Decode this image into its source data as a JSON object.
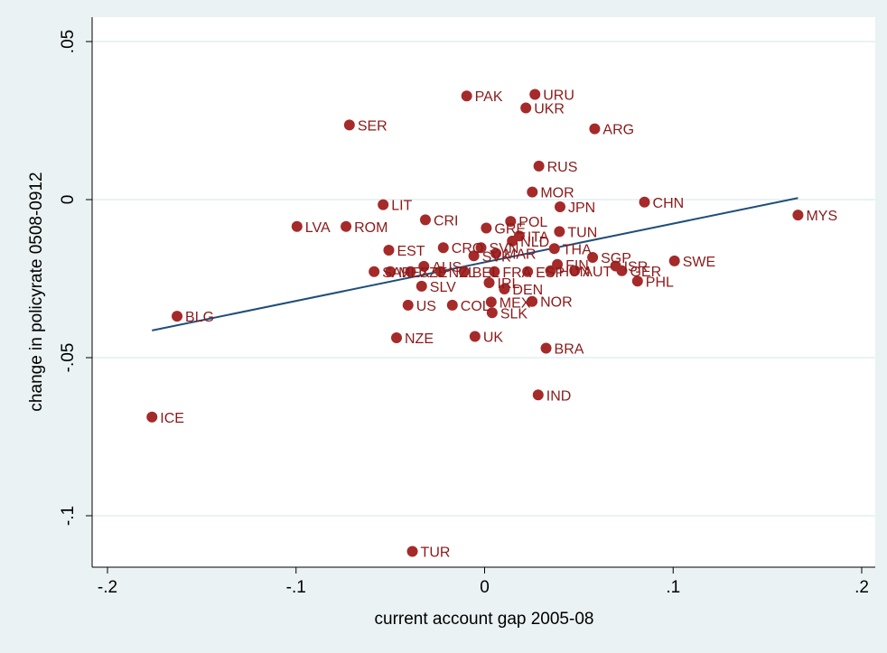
{
  "chart_data": {
    "type": "scatter",
    "title": "",
    "xlabel": "current account gap 2005-08",
    "ylabel": "change in policyrate 0508-0912",
    "xlim": [
      -0.2,
      0.2
    ],
    "ylim": [
      -0.115,
      0.05
    ],
    "xticks": [
      -0.2,
      -0.1,
      0,
      0.1,
      0.2
    ],
    "xtick_labels": [
      "-.2",
      "-.1",
      "0",
      ".1",
      ".2"
    ],
    "yticks": [
      -0.1,
      -0.05,
      0,
      0.05
    ],
    "ytick_labels": [
      "-.1",
      "-.05",
      "0",
      ".05"
    ],
    "grid": "horizontal",
    "colors": {
      "marker": "#a52a2a",
      "label": "#8b1a1a",
      "fit_line": "#1f4e79",
      "plot_bg": "#ffffff",
      "outer_bg": "#eaf2f3",
      "grid": "#e4eef0"
    },
    "points": [
      {
        "label": "PAK",
        "x": -0.0095,
        "y": 0.0328
      },
      {
        "label": "URU",
        "x": 0.0267,
        "y": 0.0333
      },
      {
        "label": "UKR",
        "x": 0.0219,
        "y": 0.029
      },
      {
        "label": "SER",
        "x": -0.0717,
        "y": 0.0236
      },
      {
        "label": "ARG",
        "x": 0.0584,
        "y": 0.0224
      },
      {
        "label": "RUS",
        "x": 0.0288,
        "y": 0.0106
      },
      {
        "label": "MOR",
        "x": 0.0253,
        "y": 0.0024
      },
      {
        "label": "JPN",
        "x": 0.04,
        "y": -0.0023
      },
      {
        "label": "CHN",
        "x": 0.0848,
        "y": -0.0008
      },
      {
        "label": "LIT",
        "x": -0.0538,
        "y": -0.0016
      },
      {
        "label": "MYS",
        "x": 0.1662,
        "y": -0.0049
      },
      {
        "label": "CRI",
        "x": -0.0314,
        "y": -0.0064
      },
      {
        "label": "LVA",
        "x": -0.0995,
        "y": -0.0085
      },
      {
        "label": "ROM",
        "x": -0.0735,
        "y": -0.0085
      },
      {
        "label": "POL",
        "x": 0.0138,
        "y": -0.0069
      },
      {
        "label": "GRE",
        "x": 0.0009,
        "y": -0.009
      },
      {
        "label": "ITA",
        "x": 0.0184,
        "y": -0.0115
      },
      {
        "label": "TUN",
        "x": 0.0397,
        "y": -0.0101
      },
      {
        "label": "NLD",
        "x": 0.0147,
        "y": -0.0131
      },
      {
        "label": "EST",
        "x": -0.0508,
        "y": -0.016
      },
      {
        "label": "CRO",
        "x": -0.0219,
        "y": -0.0152
      },
      {
        "label": "SVN",
        "x": -0.0019,
        "y": -0.0152
      },
      {
        "label": "THA",
        "x": 0.037,
        "y": -0.0155
      },
      {
        "label": "SGP",
        "x": 0.0573,
        "y": -0.0183
      },
      {
        "label": "MAR",
        "x": 0.006,
        "y": -0.017
      },
      {
        "label": "SWE",
        "x": 0.1007,
        "y": -0.0194
      },
      {
        "label": "ISR",
        "x": 0.0695,
        "y": -0.021
      },
      {
        "label": "GER",
        "x": 0.0728,
        "y": -0.0225
      },
      {
        "label": "FIN",
        "x": 0.0386,
        "y": -0.0205
      },
      {
        "label": "AUT",
        "x": 0.0478,
        "y": -0.0225
      },
      {
        "label": "HUN",
        "x": 0.035,
        "y": -0.0225
      },
      {
        "label": "PHL",
        "x": 0.0811,
        "y": -0.0258
      },
      {
        "label": "AUS",
        "x": -0.0322,
        "y": -0.0211
      },
      {
        "label": "SAF",
        "x": -0.0586,
        "y": -0.0228
      },
      {
        "label": "MEX",
        "x": -0.05,
        "y": -0.0228
      },
      {
        "label": "CZE",
        "x": -0.0393,
        "y": -0.0228
      },
      {
        "label": "NZL",
        "x": -0.0234,
        "y": -0.0228
      },
      {
        "label": "BEL",
        "x": -0.0109,
        "y": -0.0228
      },
      {
        "label": "FRA",
        "x": 0.0052,
        "y": -0.0228
      },
      {
        "label": "ESP",
        "x": 0.0228,
        "y": -0.0228
      },
      {
        "label": "SVK",
        "x": -0.0057,
        "y": -0.0178
      },
      {
        "label": "IRL",
        "x": 0.0024,
        "y": -0.0263
      },
      {
        "label": "NOR",
        "x": 0.0252,
        "y": -0.0322
      },
      {
        "label": "DEN",
        "x": 0.0105,
        "y": -0.0283
      },
      {
        "label": "SLV",
        "x": -0.0334,
        "y": -0.0274
      },
      {
        "label": "US",
        "x": -0.0406,
        "y": -0.0334
      },
      {
        "label": "COL",
        "x": -0.0171,
        "y": -0.0334
      },
      {
        "label": "MEX",
        "x": 0.0035,
        "y": -0.0324
      },
      {
        "label": "SLK",
        "x": 0.004,
        "y": -0.0358
      },
      {
        "label": "BLG",
        "x": -0.1631,
        "y": -0.0369
      },
      {
        "label": "NZE",
        "x": -0.0467,
        "y": -0.0437
      },
      {
        "label": "UK",
        "x": -0.0051,
        "y": -0.0433
      },
      {
        "label": "BRA",
        "x": 0.0326,
        "y": -0.047
      },
      {
        "label": "IND",
        "x": 0.0284,
        "y": -0.0618
      },
      {
        "label": "ICE",
        "x": -0.1764,
        "y": -0.0688
      },
      {
        "label": "TUR",
        "x": -0.0383,
        "y": -0.1113
      }
    ],
    "fit_line": {
      "x": [
        -0.1764,
        0.1662
      ],
      "y": [
        -0.0414,
        0.0005
      ]
    }
  }
}
